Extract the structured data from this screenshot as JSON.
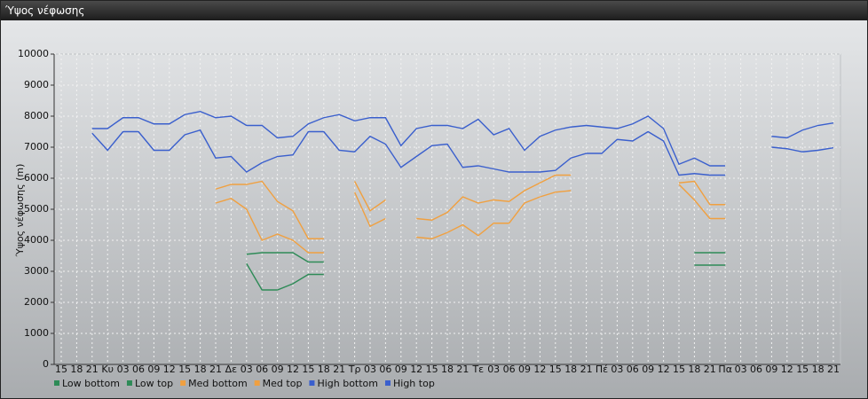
{
  "window_title": "Ύψος νέφωσης",
  "chart_data": {
    "type": "line",
    "ylabel": "Ύψος νέφωσης (m)",
    "categories": [
      "15",
      "18",
      "21",
      "Κυ",
      "03",
      "06",
      "09",
      "12",
      "15",
      "18",
      "21",
      "Δε",
      "03",
      "06",
      "09",
      "12",
      "15",
      "18",
      "21",
      "Τρ",
      "03",
      "06",
      "09",
      "12",
      "15",
      "18",
      "21",
      "Τε",
      "03",
      "06",
      "09",
      "12",
      "15",
      "18",
      "21",
      "Πέ",
      "03",
      "06",
      "09",
      "12",
      "15",
      "18",
      "21",
      "Πα",
      "03",
      "06",
      "09",
      "12",
      "15",
      "18",
      "21"
    ],
    "ylim": [
      0,
      10000
    ],
    "yticks": [
      0,
      1000,
      2000,
      3000,
      4000,
      5000,
      6000,
      7000,
      8000,
      9000,
      10000
    ],
    "grid": true,
    "series": [
      {
        "name": "Low bottom",
        "color": "#2e8b57",
        "values": [
          null,
          null,
          null,
          null,
          null,
          null,
          null,
          null,
          null,
          null,
          null,
          null,
          3250,
          2400,
          2400,
          2600,
          2900,
          2900,
          null,
          null,
          null,
          null,
          null,
          null,
          null,
          null,
          null,
          null,
          null,
          null,
          null,
          null,
          null,
          null,
          null,
          null,
          null,
          null,
          null,
          null,
          null,
          3200,
          3200,
          3200,
          null,
          null,
          null,
          null,
          null,
          null,
          null
        ]
      },
      {
        "name": "Low top",
        "color": "#2e8b57",
        "values": [
          null,
          null,
          null,
          null,
          null,
          null,
          null,
          null,
          null,
          null,
          null,
          null,
          3550,
          3600,
          3600,
          3600,
          3300,
          3300,
          null,
          null,
          null,
          null,
          null,
          null,
          null,
          null,
          null,
          null,
          null,
          null,
          null,
          null,
          null,
          null,
          null,
          null,
          null,
          null,
          null,
          null,
          null,
          3600,
          3600,
          3600,
          null,
          null,
          null,
          null,
          null,
          null,
          null
        ]
      },
      {
        "name": "Med bottom",
        "color": "#f0a040",
        "values": [
          null,
          null,
          null,
          null,
          null,
          null,
          null,
          null,
          null,
          null,
          5200,
          5350,
          5000,
          4000,
          4200,
          4000,
          3600,
          3600,
          null,
          5550,
          4450,
          4700,
          null,
          4100,
          4050,
          4250,
          4500,
          4150,
          4550,
          4550,
          5200,
          5400,
          5550,
          5600,
          null,
          null,
          null,
          null,
          null,
          null,
          5800,
          5300,
          4700,
          4700,
          null,
          null,
          null,
          null,
          null,
          null,
          null
        ]
      },
      {
        "name": "Med top",
        "color": "#f0a040",
        "values": [
          null,
          null,
          null,
          null,
          null,
          null,
          null,
          null,
          null,
          null,
          5650,
          5800,
          5800,
          5900,
          5250,
          4950,
          4050,
          4050,
          null,
          5900,
          4950,
          5300,
          null,
          4700,
          4650,
          4900,
          5400,
          5200,
          5300,
          5250,
          5600,
          5850,
          6100,
          6100,
          null,
          null,
          null,
          null,
          null,
          null,
          5850,
          5900,
          5150,
          5150,
          null,
          null,
          null,
          null,
          null,
          null,
          null
        ]
      },
      {
        "name": "High bottom",
        "color": "#3a5fcd",
        "values": [
          null,
          null,
          7450,
          6900,
          7500,
          7500,
          6900,
          6900,
          7400,
          7550,
          6650,
          6700,
          6200,
          6500,
          6700,
          6750,
          7500,
          7500,
          6900,
          6850,
          7350,
          7100,
          6350,
          6700,
          7050,
          7100,
          6350,
          6400,
          6300,
          6200,
          6200,
          6200,
          6250,
          6650,
          6800,
          6800,
          7250,
          7200,
          7500,
          7200,
          6100,
          6150,
          6100,
          6100,
          null,
          null,
          7000,
          6950,
          6850,
          6900,
          6980
        ]
      },
      {
        "name": "High top",
        "color": "#3a5fcd",
        "values": [
          null,
          null,
          7600,
          7600,
          7950,
          7950,
          7750,
          7750,
          8050,
          8150,
          7950,
          8000,
          7700,
          7700,
          7300,
          7350,
          7750,
          7950,
          8050,
          7850,
          7950,
          7950,
          7050,
          7600,
          7700,
          7700,
          7600,
          7900,
          7400,
          7600,
          6900,
          7350,
          7550,
          7650,
          7700,
          7650,
          7600,
          7750,
          8000,
          7600,
          6450,
          6650,
          6400,
          6400,
          null,
          null,
          7350,
          7300,
          7550,
          7700,
          7780
        ]
      }
    ]
  }
}
